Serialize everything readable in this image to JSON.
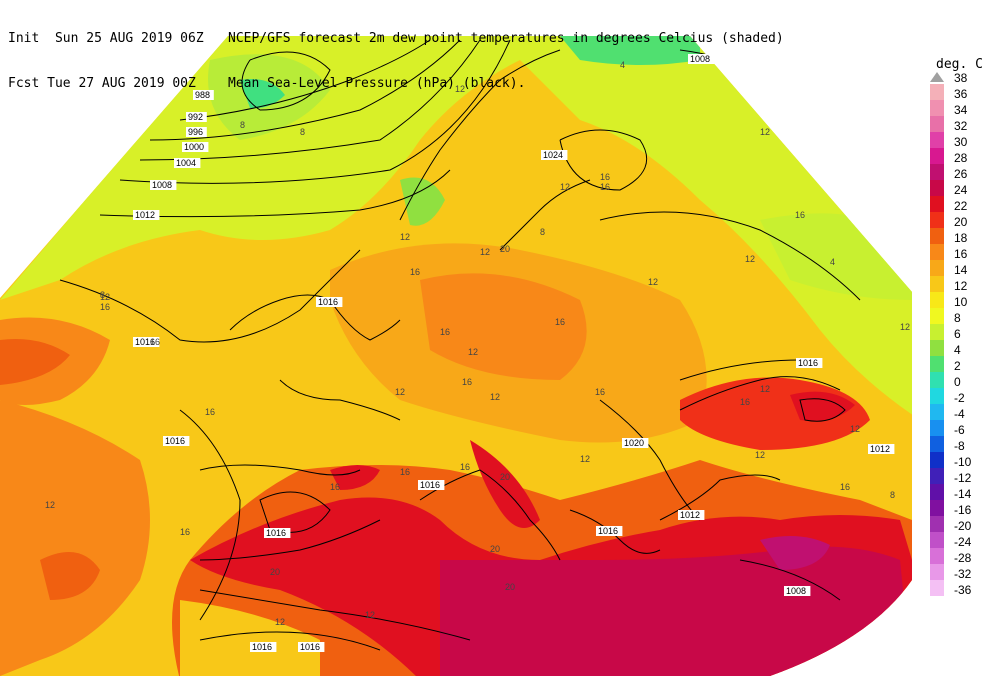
{
  "header": {
    "init_line": "Init  Sun 25 AUG 2019 06Z",
    "fcst_line": "Fcst Tue 27 AUG 2019 00Z",
    "title_line1": "NCEP/GFS forecast 2m dew point temperatures in degrees Celcius (shaded)",
    "title_line2": "Mean Sea-Level Pressure (hPa) (black)."
  },
  "legend": {
    "unit": "deg. C",
    "levels": [
      {
        "label": "38",
        "color": "#a0a0a0"
      },
      {
        "label": "36",
        "color": "#f4b0b8"
      },
      {
        "label": "34",
        "color": "#f090b0"
      },
      {
        "label": "32",
        "color": "#e870a8"
      },
      {
        "label": "30",
        "color": "#e040a8"
      },
      {
        "label": "28",
        "color": "#d81890"
      },
      {
        "label": "26",
        "color": "#c01070"
      },
      {
        "label": "24",
        "color": "#c80848"
      },
      {
        "label": "22",
        "color": "#e01020"
      },
      {
        "label": "20",
        "color": "#f03018"
      },
      {
        "label": "18",
        "color": "#f06010"
      },
      {
        "label": "16",
        "color": "#f88818"
      },
      {
        "label": "14",
        "color": "#f8a818"
      },
      {
        "label": "12",
        "color": "#f8c818"
      },
      {
        "label": "10",
        "color": "#f8e818"
      },
      {
        "label": "8",
        "color": "#f0f820"
      },
      {
        "label": "6",
        "color": "#c8f030"
      },
      {
        "label": "4",
        "color": "#90e040"
      },
      {
        "label": "2",
        "color": "#50e070"
      },
      {
        "label": "0",
        "color": "#30e0b0"
      },
      {
        "label": "-2",
        "color": "#20d8e0"
      },
      {
        "label": "-4",
        "color": "#20b8f0"
      },
      {
        "label": "-6",
        "color": "#1890f0"
      },
      {
        "label": "-8",
        "color": "#1060e0"
      },
      {
        "label": "-10",
        "color": "#1030c8"
      },
      {
        "label": "-12",
        "color": "#4020b8"
      },
      {
        "label": "-14",
        "color": "#6010a8"
      },
      {
        "label": "-16",
        "color": "#8010a0"
      },
      {
        "label": "-20",
        "color": "#a030b0"
      },
      {
        "label": "-24",
        "color": "#c050c8"
      },
      {
        "label": "-28",
        "color": "#d870d8"
      },
      {
        "label": "-32",
        "color": "#e898e8"
      },
      {
        "label": "-36",
        "color": "#f4c0f4"
      }
    ]
  },
  "isobar_labels": [
    "988",
    "992",
    "996",
    "1000",
    "1004",
    "1008",
    "1012",
    "1016",
    "1020",
    "1024"
  ],
  "map": {
    "pressure_labels": [
      {
        "text": "988"
      },
      {
        "text": "992"
      },
      {
        "text": "996"
      },
      {
        "text": "1000"
      },
      {
        "text": "1004"
      },
      {
        "text": "1008"
      },
      {
        "text": "1012"
      },
      {
        "text": "1016"
      },
      {
        "text": "1016"
      },
      {
        "text": "1016"
      },
      {
        "text": "1024"
      },
      {
        "text": "1016"
      },
      {
        "text": "1020"
      },
      {
        "text": "1012"
      },
      {
        "text": "1016"
      },
      {
        "text": "1012"
      },
      {
        "text": "1016"
      },
      {
        "text": "1008"
      },
      {
        "text": "1016"
      },
      {
        "text": "1008"
      },
      {
        "text": "1016"
      },
      {
        "text": "1016"
      }
    ],
    "dewpoint_labels": [
      "12",
      "8",
      "8",
      "12",
      "16",
      "12",
      "8",
      "4",
      "12",
      "16",
      "16",
      "12",
      "16",
      "16",
      "12",
      "12",
      "16",
      "16",
      "16",
      "20",
      "20",
      "12",
      "12",
      "16",
      "16",
      "16",
      "12",
      "8",
      "12",
      "20",
      "20",
      "12",
      "16",
      "12",
      "8",
      "4",
      "12",
      "16",
      "12",
      "16",
      "12",
      "20",
      "12",
      "16",
      "16",
      "12",
      "12",
      "16"
    ]
  }
}
